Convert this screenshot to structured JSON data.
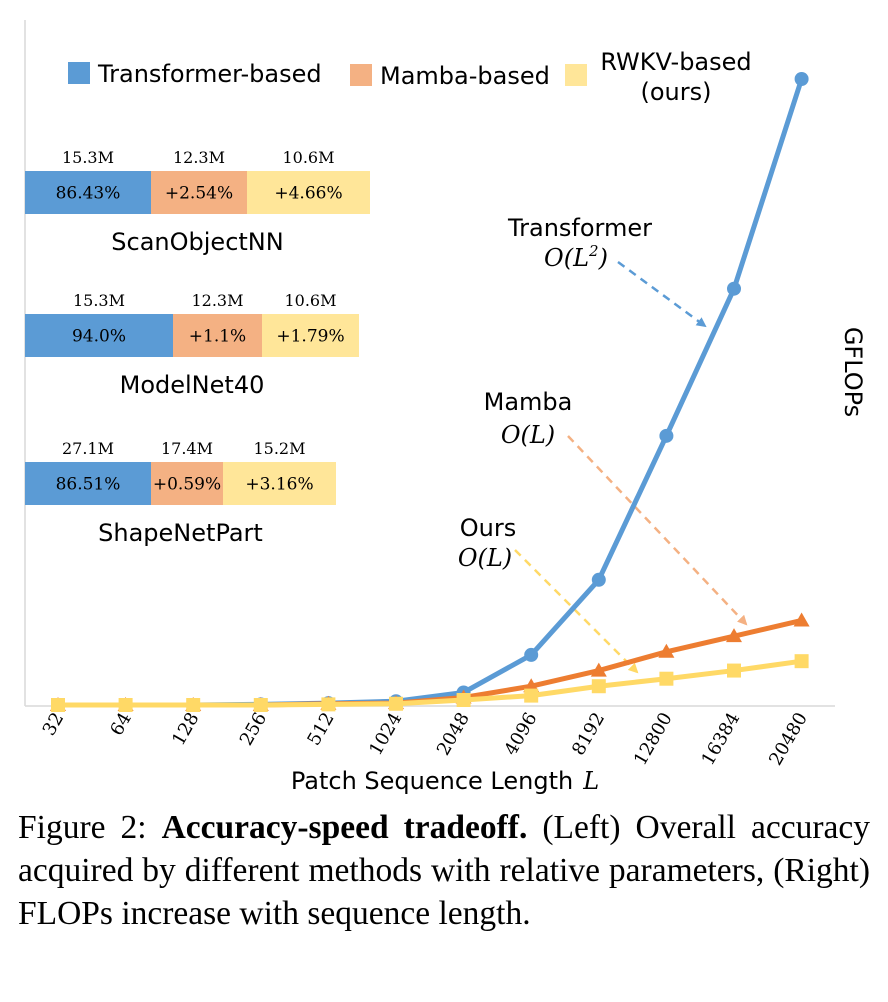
{
  "colors": {
    "transformer": "#5B9BD5",
    "mamba": "#F4B183",
    "rwkv": "#FFE699",
    "transformer_line": "#5B9BD5",
    "mamba_line": "#ED7D31",
    "rwkv_line": "#FFD966"
  },
  "legend": {
    "transformer": "Transformer-based",
    "mamba": "Mamba-based",
    "rwkv_line1": "RWKV-based",
    "rwkv_line2": "(ours)"
  },
  "accuracy_bars": [
    {
      "dataset": "ScanObjectNN",
      "params": [
        "15.3M",
        "12.3M",
        "10.6M"
      ],
      "labels": [
        "86.43%",
        "+2.54%",
        "+4.66%"
      ],
      "accuracy": [
        86.43,
        2.54,
        4.66
      ]
    },
    {
      "dataset": "ModelNet40",
      "params": [
        "15.3M",
        "12.3M",
        "10.6M"
      ],
      "labels": [
        "94.0%",
        "+1.1%",
        "+1.79%"
      ],
      "accuracy": [
        94.0,
        1.1,
        1.79
      ]
    },
    {
      "dataset": "ShapeNetPart",
      "params": [
        "27.1M",
        "17.4M",
        "15.2M"
      ],
      "labels": [
        "86.51%",
        "+0.59%",
        "+3.16%"
      ],
      "accuracy": [
        86.51,
        0.59,
        3.16
      ]
    }
  ],
  "chart_data": {
    "type": "line",
    "title": "",
    "xlabel": "Patch Sequence Length",
    "xlabel_var": "L",
    "ylabel": "GFLOPs",
    "categories": [
      "32",
      "64",
      "128",
      "256",
      "512",
      "1024",
      "2048",
      "4096",
      "8192",
      "12800",
      "16384",
      "20480"
    ],
    "ylim": [
      0,
      100
    ],
    "series": [
      {
        "name": "Transformer",
        "marker": "circle",
        "values": [
          0,
          0,
          0,
          0.1,
          0.3,
          0.6,
          2,
          8,
          20,
          43,
          66.5,
          100
        ]
      },
      {
        "name": "Mamba",
        "marker": "triangle",
        "values": [
          0,
          0,
          0,
          0,
          0.2,
          0.3,
          1.2,
          3,
          5.5,
          8.5,
          11,
          13.5
        ]
      },
      {
        "name": "Ours",
        "marker": "square",
        "values": [
          0,
          0,
          0,
          0,
          0.1,
          0.2,
          0.8,
          1.5,
          3,
          4.2,
          5.5,
          7
        ]
      }
    ],
    "annotations": [
      {
        "series": "Transformer",
        "label": "Transformer",
        "complexity_prefix": "O(L",
        "complexity_sup": "2",
        "complexity_suffix": ")"
      },
      {
        "series": "Mamba",
        "label": "Mamba",
        "complexity": "O(L)"
      },
      {
        "series": "Ours",
        "label": "Ours",
        "complexity": "O(L)"
      }
    ]
  },
  "caption": {
    "prefix": "Figure 2: ",
    "bold": "Accuracy-speed tradeoff.",
    "rest": " (Left) Overall accuracy acquired by different methods with relative parameters, (Right) FLOPs increase with sequence length."
  }
}
